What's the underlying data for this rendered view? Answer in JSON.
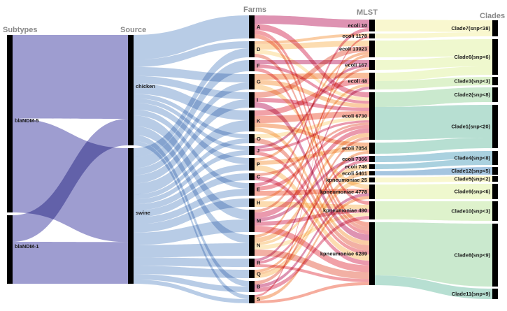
{
  "diagram": {
    "type": "sankey",
    "columns": [
      {
        "key": "subtypes",
        "title": "Subtypes"
      },
      {
        "key": "source",
        "title": "Source"
      },
      {
        "key": "farms",
        "title": "Farms"
      },
      {
        "key": "mlst",
        "title": "MLST"
      },
      {
        "key": "clades",
        "title": "Clades"
      }
    ],
    "nodes": {
      "subtypes": [
        "blaNDM-5",
        "blaNDM-1"
      ],
      "source": [
        "chicken",
        "swine"
      ],
      "farms": [
        "A",
        "D",
        "F",
        "G",
        "I",
        "K",
        "O",
        "J",
        "P",
        "C",
        "E",
        "H",
        "M",
        "N",
        "R",
        "Q",
        "B",
        "S"
      ],
      "mlst": [
        "ecoli 10",
        "ecoli 1178",
        "ecoli 13923",
        "ecoli 167",
        "ecoli 48",
        "ecoli 6730",
        "ecoli 7054",
        "ecoli 7366",
        "ecoli 746",
        "ecoli 5461",
        "kpneumoniae 25",
        "kpneumoniae 4778",
        "kpneumoniae 490",
        "kpneumoniae 6289"
      ],
      "clades": [
        "Clade7(snp<38)",
        "Clade6(snp<6)",
        "Clade3(snp<3)",
        "Clade2(snp<8)",
        "Clade1(snp<20)",
        "Clade4(snp<8)",
        "Clade12(snp<5)",
        "Clade5(snp<2)",
        "Clade9(snp<6)",
        "Clade10(snp<3)",
        "Clade8(snp<9)",
        "Clade11(snp<9)"
      ]
    },
    "colors": {
      "subtype_link": "#8d8cc8",
      "source_link": "#7da2d1",
      "farm_link_palette": [
        "#c23a72",
        "#d9456a",
        "#e5545e",
        "#ee6a4f",
        "#f38848",
        "#f6a45a",
        "#f9c06f",
        "#fbd98e",
        "#e86f5a",
        "#d9456a"
      ],
      "mlst_link_palette": [
        "#f4f0a8",
        "#e2f2a6",
        "#c3e7a3",
        "#9fd7a6",
        "#7cc5ad",
        "#64abc4",
        "#5b95c6"
      ],
      "node_bar": "#000000"
    }
  }
}
